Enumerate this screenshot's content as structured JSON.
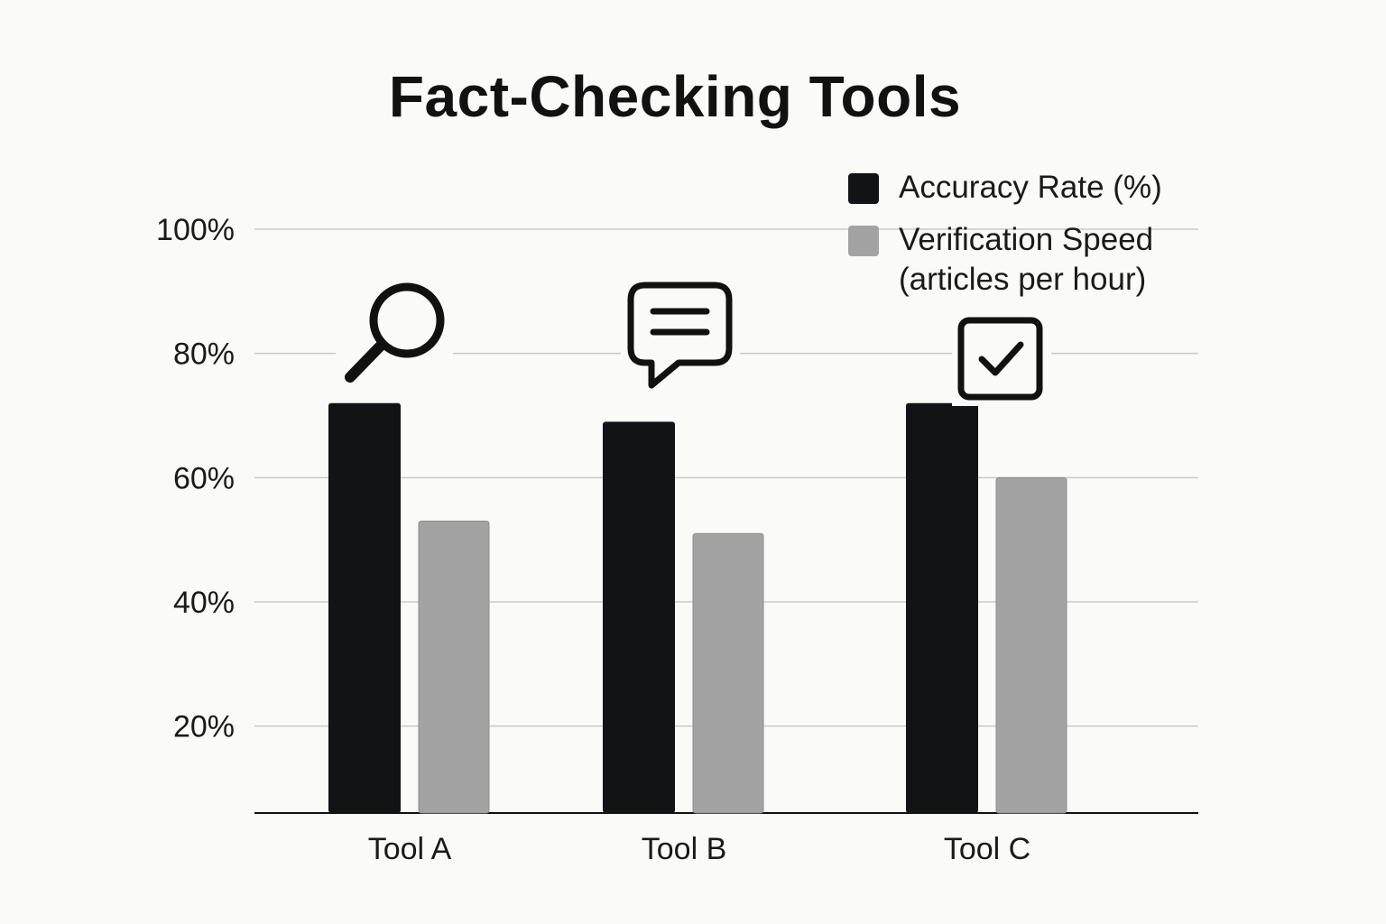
{
  "chart_data": {
    "type": "bar",
    "title": "Fact-Checking Tools",
    "xlabel": "",
    "ylabel": "",
    "categories": [
      "Tool A",
      "Tool B",
      "Tool C"
    ],
    "series": [
      {
        "name": "Accuracy Rate (%)",
        "values": [
          72,
          69,
          72
        ],
        "color": "#111315"
      },
      {
        "name": "Verification Speed (articles per hour)",
        "values": [
          53,
          51,
          60
        ],
        "color": "#a3a3a3"
      }
    ],
    "y_ticks": [
      "20%",
      "40%",
      "60%",
      "80%",
      "100%"
    ],
    "y_tick_values": [
      20,
      40,
      60,
      80,
      100
    ],
    "ylim": [
      6,
      100
    ],
    "grid": true,
    "legend_position": "top-right",
    "category_icons": [
      "magnifier-icon",
      "speech-bubble-icon",
      "checkbox-icon"
    ],
    "legend_lines": {
      "series_1": [
        "Accuracy Rate (%)"
      ],
      "series_2": [
        "Verification Speed",
        "(articles per hour)"
      ]
    }
  }
}
